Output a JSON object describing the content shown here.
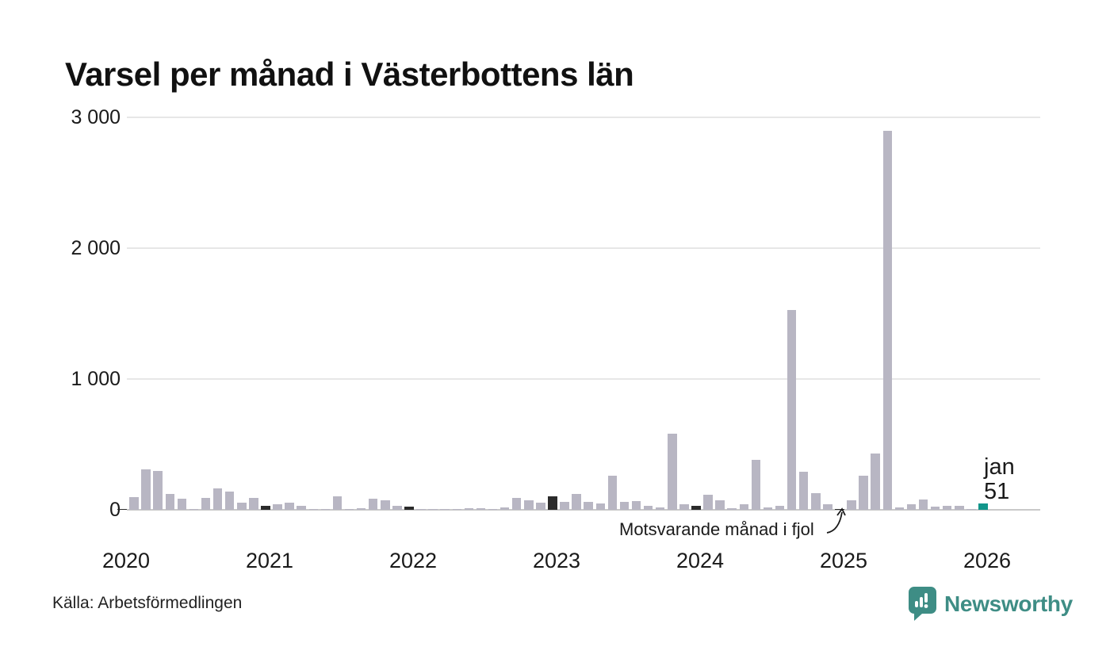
{
  "title": "Varsel per månad i Västerbottens län",
  "source": "Källa: Arbetsförmedlingen",
  "annotation": {
    "text": "Motsvarande månad i fjol",
    "target": "januari 2025"
  },
  "current_point_label": {
    "month": "jan",
    "value": "51"
  },
  "branding": {
    "logo_text": "Newsworthy",
    "logo_icon": "bar-chart-speech-bubble-icon",
    "logo_color": "#3e8d85"
  },
  "chart_data": {
    "type": "bar",
    "title": "Varsel per månad i Västerbottens län",
    "xlabel": "",
    "ylabel": "",
    "ylim": [
      0,
      3000
    ],
    "grid": "horizontal",
    "legend": "none",
    "yticks": [
      {
        "value": 0,
        "label": "0"
      },
      {
        "value": 1000,
        "label": "1 000"
      },
      {
        "value": 2000,
        "label": "2 000"
      },
      {
        "value": 3000,
        "label": "3 000"
      }
    ],
    "xticklabels": [
      "2020",
      "2021",
      "2022",
      "2023",
      "2024",
      "2025",
      "2026"
    ],
    "bar_colors": {
      "default": "#b8b6c3",
      "january_previous_years": "#2b2b2b",
      "current_month": "#11968b"
    },
    "years": [
      {
        "year": "2020",
        "monthly_values": [
          5,
          95,
          310,
          295,
          120,
          87,
          2,
          88,
          165,
          139,
          52,
          88
        ]
      },
      {
        "year": "2021",
        "monthly_values": [
          30,
          42,
          57,
          28,
          8,
          8,
          105,
          3,
          12,
          85,
          73,
          28
        ]
      },
      {
        "year": "2022",
        "monthly_values": [
          22,
          5,
          8,
          5,
          3,
          15,
          15,
          3,
          20,
          90,
          75,
          55
        ]
      },
      {
        "year": "2023",
        "monthly_values": [
          103,
          62,
          123,
          58,
          48,
          260,
          62,
          68,
          28,
          18,
          580,
          42
        ]
      },
      {
        "year": "2024",
        "monthly_values": [
          28,
          113,
          73,
          12,
          45,
          380,
          18,
          32,
          1530,
          290,
          130,
          45
        ]
      },
      {
        "year": "2025",
        "monthly_values": [
          5,
          75,
          260,
          430,
          2900,
          20,
          42,
          77,
          22,
          28,
          28,
          5
        ]
      },
      {
        "year": "2026",
        "monthly_values": [
          51
        ]
      }
    ]
  }
}
